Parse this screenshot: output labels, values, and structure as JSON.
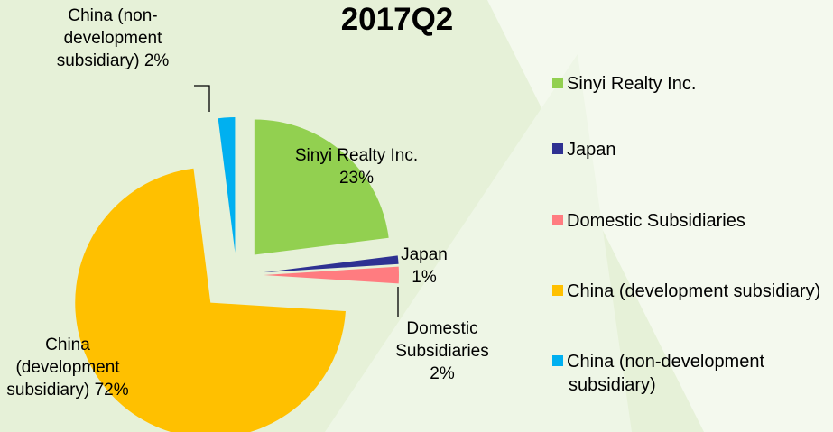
{
  "chart_data": {
    "type": "pie",
    "title": "2017Q2",
    "categories": [
      "Sinyi Realty Inc.",
      "Japan",
      "Domestic Subsidiaries",
      "China (development subsidiary)",
      "China (non-development subsidiary)"
    ],
    "values": [
      23,
      1,
      2,
      72,
      2
    ],
    "value_labels": [
      "23%",
      "1%",
      "2%",
      "72%",
      "2%"
    ],
    "colors": [
      "#92d050",
      "#2e3192",
      "#ff7c80",
      "#ffc000",
      "#00b0f0"
    ],
    "legend": "right"
  }
}
